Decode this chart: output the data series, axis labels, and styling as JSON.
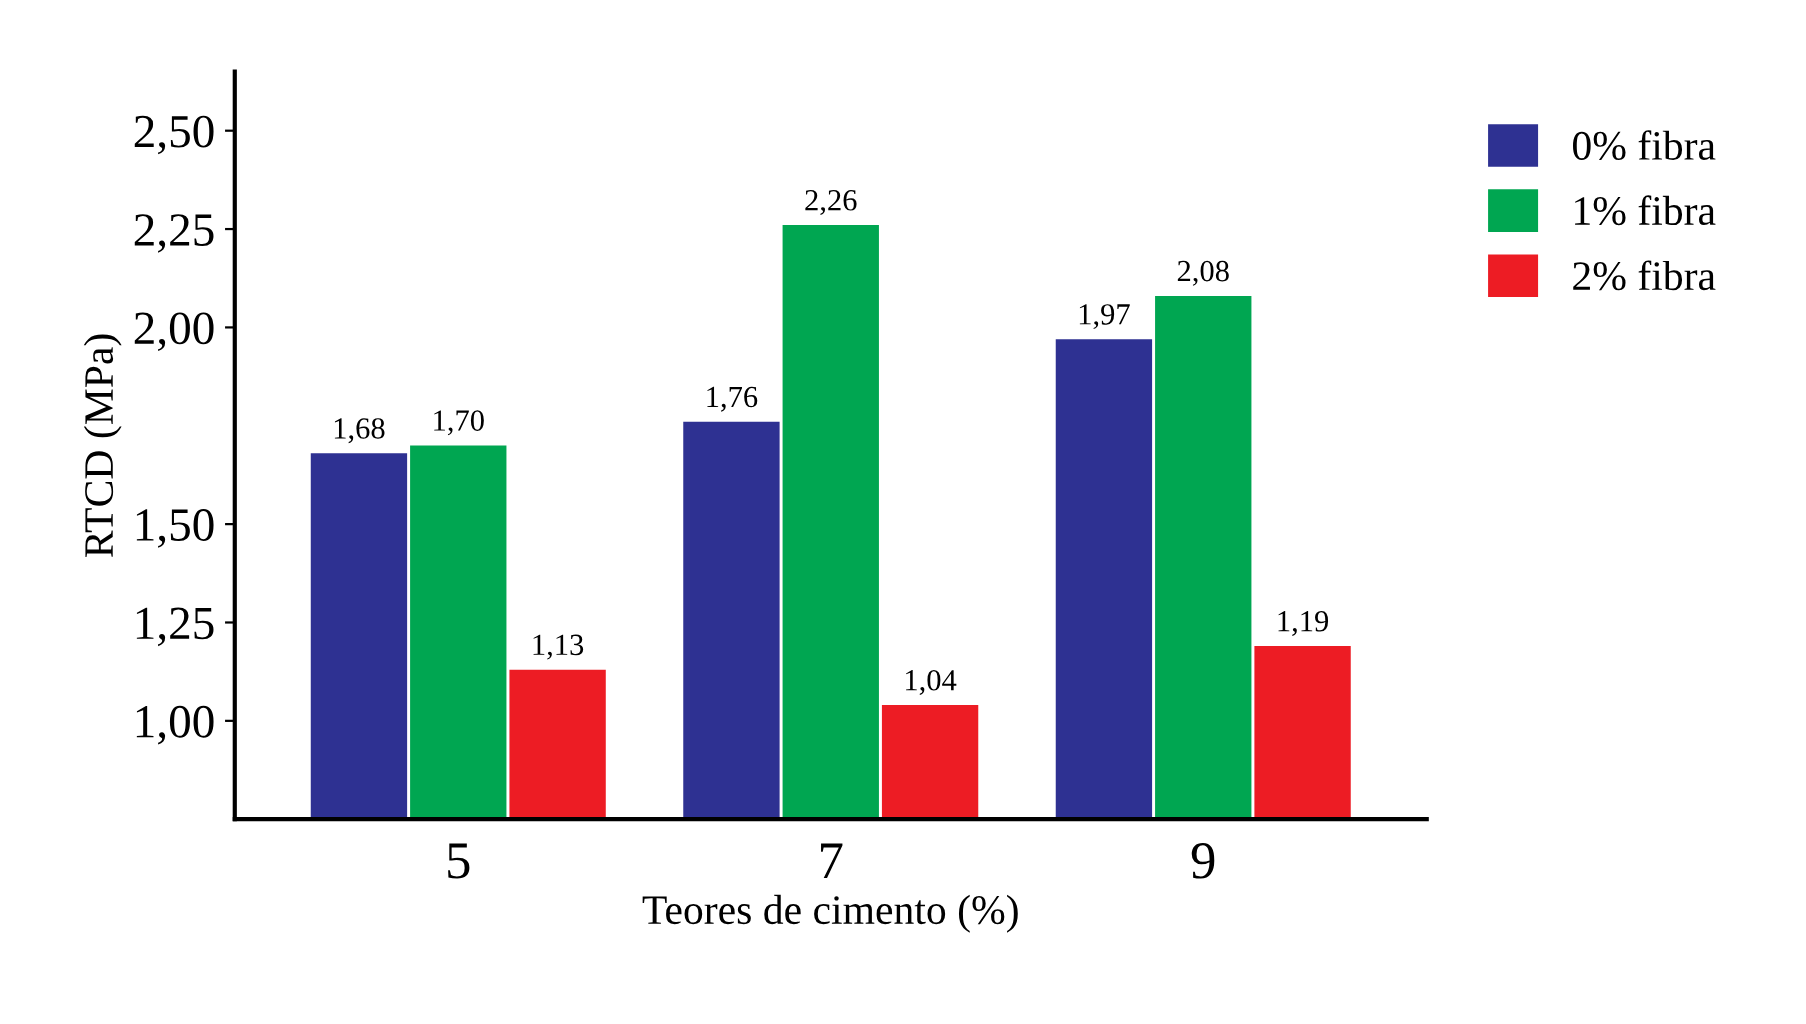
{
  "chart_data": {
    "type": "bar",
    "xlabel": "Teores de cimento (%)",
    "ylabel": "RTCD (MPa)",
    "categories": [
      "5",
      "7",
      "9"
    ],
    "series": [
      {
        "name": "0% fibra",
        "color": "#2e3192",
        "values": [
          1.68,
          1.76,
          1.97
        ],
        "value_labels": [
          "1,68",
          "1,76",
          "1,97"
        ]
      },
      {
        "name": "1% fibra",
        "color": "#00a651",
        "values": [
          1.7,
          2.26,
          2.08
        ],
        "value_labels": [
          "1,70",
          "2,26",
          "2,08"
        ]
      },
      {
        "name": "2% fibra",
        "color": "#ed1c24",
        "values": [
          1.13,
          1.04,
          1.19
        ],
        "value_labels": [
          "1,13",
          "1,04",
          "1,19"
        ]
      }
    ],
    "ylim": [
      0.75,
      2.65
    ],
    "yticks": [
      {
        "value": 1.0,
        "label": "1,00"
      },
      {
        "value": 1.25,
        "label": "1,25"
      },
      {
        "value": 1.5,
        "label": "1,50"
      },
      {
        "value": 2.0,
        "label": "2,00"
      },
      {
        "value": 2.25,
        "label": "2,25"
      },
      {
        "value": 2.5,
        "label": "2,50"
      }
    ],
    "legend": "right",
    "grid": false
  }
}
